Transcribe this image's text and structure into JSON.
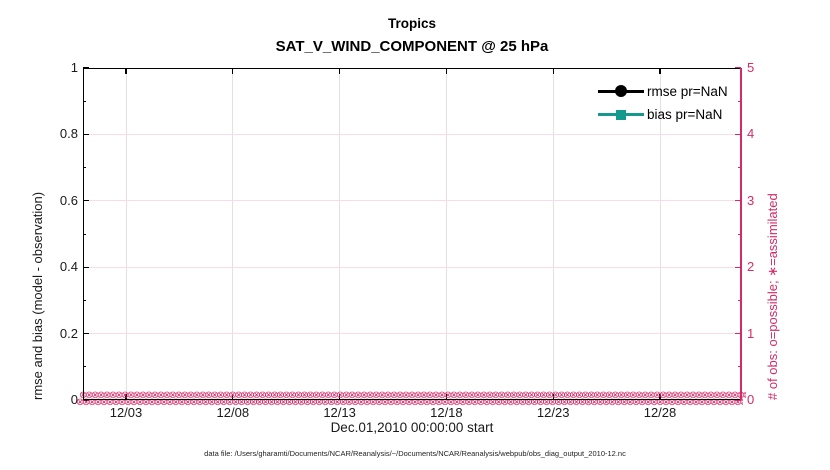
{
  "figure": {
    "title_line1": "Tropics",
    "title_line2": "SAT_V_WIND_COMPONENT @ 25 hPa",
    "xlabel": "Dec.01,2010 00:00:00 start",
    "footer": "data file: /Users/gharamti/Documents/NCAR/Reanalysis/~/Documents/NCAR/Reanalysis/webpub/obs_diag_output_2010-12.nc"
  },
  "legend": {
    "items": [
      {
        "label": "rmse pr=NaN",
        "color": "#000000",
        "marker": "circle"
      },
      {
        "label": "bias pr=NaN",
        "color": "#13998e",
        "marker": "square"
      }
    ]
  },
  "chart_data": {
    "type": "line",
    "title": "Tropics",
    "subtitle": "SAT_V_WIND_COMPONENT @ 25 hPa",
    "xlabel": "Dec.01,2010 00:00:00 start",
    "x_ticks": [
      "12/03",
      "12/08",
      "12/13",
      "12/18",
      "12/23",
      "12/28"
    ],
    "x_range": [
      "12/01",
      "01/01"
    ],
    "grid": true,
    "legend_position": "top-right-inside",
    "left_axis": {
      "label": "rmse and bias (model - observation)",
      "ticks": [
        "0",
        "0.2",
        "0.4",
        "0.6",
        "0.8",
        "1"
      ],
      "range": [
        0,
        1
      ],
      "color": "#000000"
    },
    "right_axis": {
      "label": "# of obs: o=possible; ∗=assimilated",
      "ticks": [
        "0",
        "1",
        "2",
        "3",
        "4",
        "5"
      ],
      "range": [
        0,
        5
      ],
      "color": "#d62a68"
    },
    "series": [
      {
        "name": "rmse pr=NaN",
        "color": "#000000",
        "marker": "filled-circle",
        "values": "NaN (nothing plotted)"
      },
      {
        "name": "bias pr=NaN",
        "color": "#13998e",
        "marker": "filled-square",
        "values": "NaN (nothing plotted)"
      },
      {
        "name": "# of obs possible (o)",
        "color": "#d62a68",
        "marker": "o",
        "constant_value": 0
      },
      {
        "name": "# of obs assimilated (×)",
        "color": "#d62a68",
        "marker": "×",
        "constant_value": 0
      }
    ],
    "obs_band": {
      "glyph": "⊗",
      "count_per_row": 130,
      "rows": 2
    }
  }
}
